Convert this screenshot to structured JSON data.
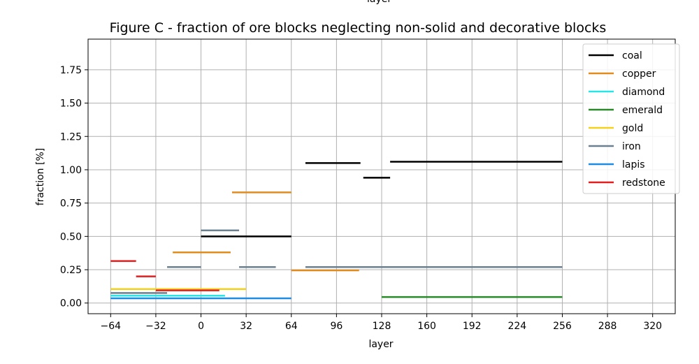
{
  "top_cut_label": "layer",
  "chart_data": {
    "type": "line",
    "title": "Figure C - fraction of ore blocks neglecting non-solid and decorative blocks",
    "xlabel": "layer",
    "ylabel": "fraction [%]",
    "xlim": [
      -80,
      336
    ],
    "ylim": [
      -0.08,
      1.98
    ],
    "xticks": [
      -64,
      -32,
      0,
      32,
      64,
      96,
      128,
      160,
      192,
      224,
      256,
      288,
      320
    ],
    "xtick_labels": [
      "−64",
      "−32",
      "0",
      "32",
      "64",
      "96",
      "128",
      "160",
      "192",
      "224",
      "256",
      "288",
      "320"
    ],
    "yticks": [
      0.0,
      0.25,
      0.5,
      0.75,
      1.0,
      1.25,
      1.5,
      1.75
    ],
    "ytick_labels": [
      "0.00",
      "0.25",
      "0.50",
      "0.75",
      "1.00",
      "1.25",
      "1.50",
      "1.75"
    ],
    "grid": true,
    "legend_position": "top-right",
    "series": [
      {
        "name": "coal",
        "color": "#000000",
        "segments": [
          {
            "x": [
              0,
              64
            ],
            "y": 0.5
          },
          {
            "x": [
              74,
              113
            ],
            "y": 1.05
          },
          {
            "x": [
              115,
              134
            ],
            "y": 0.94
          },
          {
            "x": 134,
            "y": 1.06,
            "x_end": 256
          }
        ]
      },
      {
        "name": "copper",
        "color": "#e08c1e",
        "segments": [
          {
            "x": [
              -20,
              21
            ],
            "y": 0.38
          },
          {
            "x": [
              22,
              64
            ],
            "y": 0.83
          },
          {
            "x": [
              64,
              112
            ],
            "y": 0.245
          }
        ]
      },
      {
        "name": "diamond",
        "color": "#29e6e6",
        "segments": [
          {
            "x": [
              -64,
              17
            ],
            "y": 0.055
          }
        ]
      },
      {
        "name": "emerald",
        "color": "#2a8a2a",
        "segments": [
          {
            "x": [
              128,
              256
            ],
            "y": 0.045
          }
        ]
      },
      {
        "name": "gold",
        "color": "#f2d21e",
        "segments": [
          {
            "x": [
              -64,
              32
            ],
            "y": 0.105
          }
        ]
      },
      {
        "name": "iron",
        "color": "#6b8090",
        "segments": [
          {
            "x": [
              -64,
              -24
            ],
            "y": 0.075
          },
          {
            "x": [
              -24,
              0
            ],
            "y": 0.27
          },
          {
            "x": [
              0,
              27
            ],
            "y": 0.545
          },
          {
            "x": [
              27,
              53
            ],
            "y": 0.27
          },
          {
            "x": [
              74,
              256
            ],
            "y": 0.27
          }
        ]
      },
      {
        "name": "lapis",
        "color": "#1f8ce0",
        "segments": [
          {
            "x": [
              -64,
              64
            ],
            "y": 0.035
          }
        ]
      },
      {
        "name": "redstone",
        "color": "#e02020",
        "segments": [
          {
            "x": [
              -64,
              -46
            ],
            "y": 0.315
          },
          {
            "x": [
              -46,
              -32
            ],
            "y": 0.2
          },
          {
            "x": [
              -32,
              13
            ],
            "y": 0.095
          }
        ]
      }
    ]
  }
}
